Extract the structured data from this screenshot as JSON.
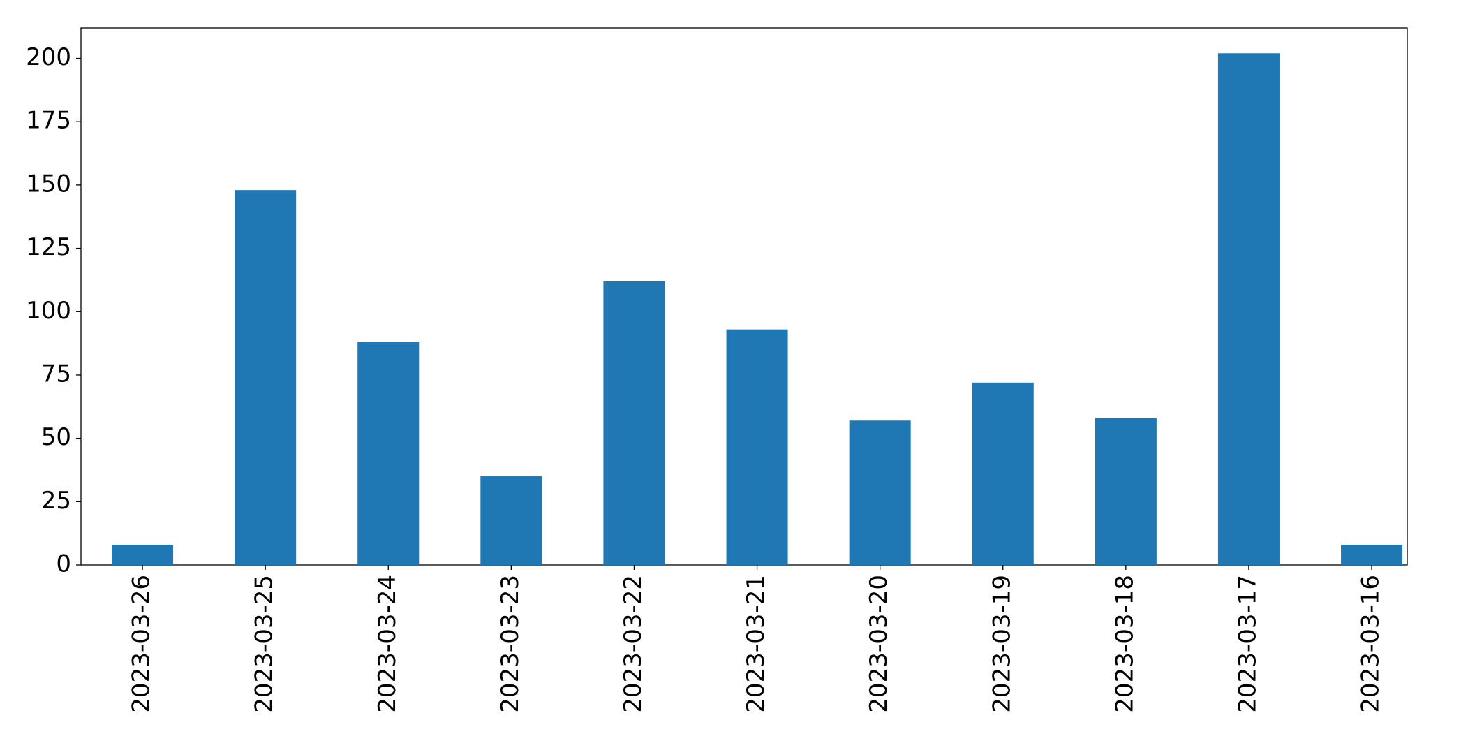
{
  "chart_data": {
    "type": "bar",
    "categories": [
      "2023-03-26",
      "2023-03-25",
      "2023-03-24",
      "2023-03-23",
      "2023-03-22",
      "2023-03-21",
      "2023-03-20",
      "2023-03-19",
      "2023-03-18",
      "2023-03-17",
      "2023-03-16"
    ],
    "values": [
      8,
      148,
      88,
      35,
      112,
      93,
      57,
      72,
      58,
      202,
      8
    ],
    "color": "#1f77b4",
    "ylim": [
      0,
      212
    ],
    "yticks": [
      0,
      25,
      50,
      75,
      100,
      125,
      150,
      175,
      200
    ],
    "grid": false
  }
}
